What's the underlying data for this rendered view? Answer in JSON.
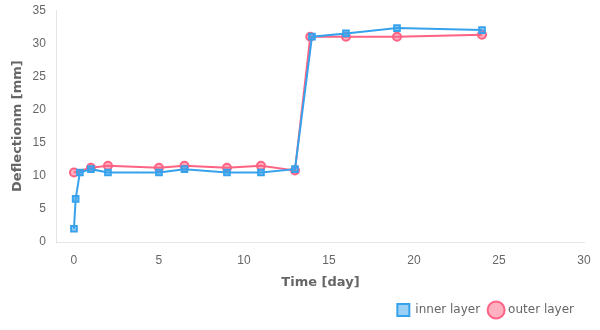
{
  "chart_data": {
    "type": "line",
    "x_label": "Time [day]",
    "y_label": "Deflectionm [mm]",
    "series": [
      {
        "name": "inner layer",
        "marker": "square",
        "x": [
          0,
          0.1,
          0.35,
          1,
          2,
          5,
          6.5,
          9,
          11,
          13,
          14,
          16,
          19,
          24
        ],
        "values": [
          2.0,
          6.5,
          10.5,
          11.0,
          10.5,
          10.5,
          11.0,
          10.5,
          10.5,
          11.0,
          31.0,
          31.5,
          32.3,
          32.0
        ]
      },
      {
        "name": "outer layer",
        "marker": "circle",
        "x": [
          0,
          1,
          2,
          5,
          6.5,
          9,
          11,
          13,
          13.9,
          16,
          19,
          24
        ],
        "values": [
          10.5,
          11.2,
          11.5,
          11.2,
          11.5,
          11.2,
          11.5,
          10.8,
          31.0,
          31.0,
          31.0,
          31.3
        ]
      }
    ],
    "xlim": [
      -1,
      30
    ],
    "ylim": [
      0,
      35
    ],
    "xticks": [
      0,
      5,
      10,
      15,
      20,
      25,
      30
    ],
    "yticks": [
      0,
      5,
      10,
      15,
      20,
      25,
      30,
      35
    ],
    "grid": false,
    "legend": "lower right"
  }
}
